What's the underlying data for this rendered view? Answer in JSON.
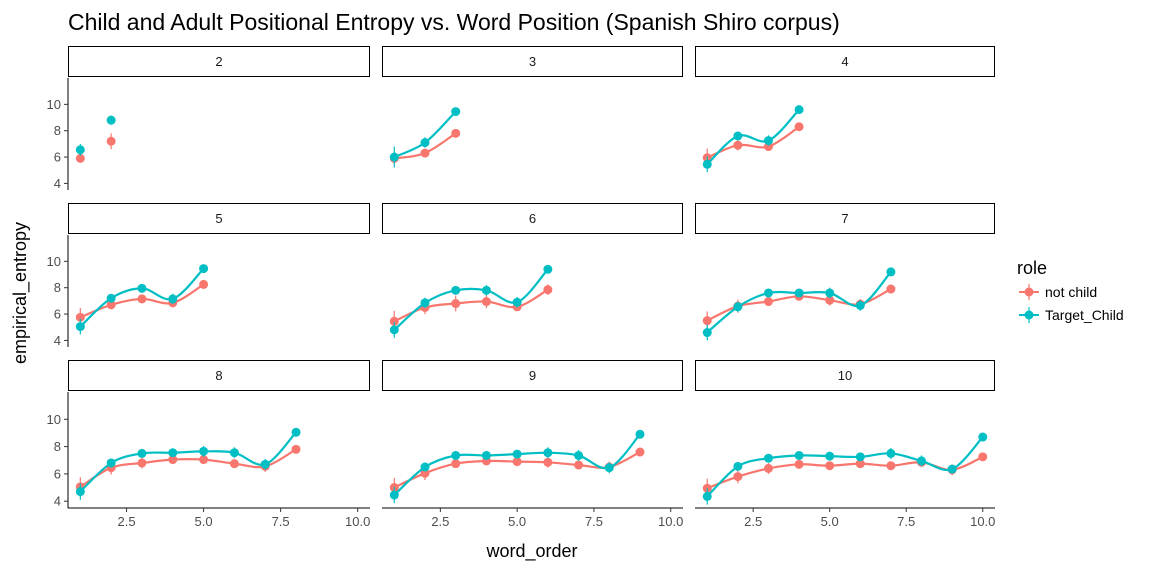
{
  "chart_data": {
    "type": "line",
    "title": "Child and Adult Positional Entropy vs. Word Position (Spanish Shiro corpus)",
    "xlabel": "word_order",
    "ylabel": "empirical_entropy",
    "xlim": [
      0.6,
      10.4
    ],
    "ylim": [
      3.5,
      12
    ],
    "x_ticks": [
      2.5,
      5.0,
      7.5,
      10.0
    ],
    "x_tick_labels": [
      "2.5",
      "5.0",
      "7.5",
      "10.0"
    ],
    "y_ticks": [
      4,
      6,
      8,
      10
    ],
    "y_tick_labels": [
      "4",
      "6",
      "8",
      "10"
    ],
    "grid": false,
    "legend": {
      "title": "role",
      "position": "right",
      "entries": [
        {
          "label": "not child",
          "color": "#F8766D"
        },
        {
          "label": "Target_Child",
          "color": "#00BFC4"
        }
      ]
    },
    "panels": [
      {
        "label": "2",
        "not_child": {
          "x": [
            1,
            2
          ],
          "y": [
            5.9,
            7.2
          ],
          "err": [
            0.3,
            0.6
          ]
        },
        "target_child": {
          "x": [
            1,
            2
          ],
          "y": [
            6.55,
            8.8
          ],
          "err": [
            0.45,
            0.35
          ]
        }
      },
      {
        "label": "3",
        "not_child": {
          "x": [
            1,
            2,
            3
          ],
          "y": [
            5.9,
            6.3,
            7.8
          ],
          "err": [
            0.5,
            0.3,
            0.3
          ]
        },
        "target_child": {
          "x": [
            1,
            2,
            3
          ],
          "y": [
            6.0,
            7.1,
            9.45
          ],
          "err": [
            0.8,
            0.4,
            0.2
          ]
        }
      },
      {
        "label": "4",
        "not_child": {
          "x": [
            1,
            2,
            3,
            4
          ],
          "y": [
            5.95,
            6.9,
            6.8,
            8.3
          ],
          "err": [
            0.7,
            0.4,
            0.3,
            0.3
          ]
        },
        "target_child": {
          "x": [
            1,
            2,
            3,
            4
          ],
          "y": [
            5.45,
            7.6,
            7.25,
            9.6
          ],
          "err": [
            0.6,
            0.3,
            0.4,
            0.2
          ]
        }
      },
      {
        "label": "5",
        "not_child": {
          "x": [
            1,
            2,
            3,
            4,
            5
          ],
          "y": [
            5.75,
            6.7,
            7.15,
            6.85,
            8.25
          ],
          "err": [
            0.7,
            0.3,
            0.3,
            0.3,
            0.3
          ]
        },
        "target_child": {
          "x": [
            1,
            2,
            3,
            4,
            5
          ],
          "y": [
            5.05,
            7.2,
            7.95,
            7.15,
            9.45
          ],
          "err": [
            0.6,
            0.3,
            0.3,
            0.4,
            0.2
          ]
        }
      },
      {
        "label": "6",
        "not_child": {
          "x": [
            1,
            2,
            3,
            4,
            5,
            6
          ],
          "y": [
            5.45,
            6.5,
            6.8,
            6.95,
            6.55,
            7.85
          ],
          "err": [
            0.8,
            0.5,
            0.6,
            0.5,
            0.3,
            0.4
          ]
        },
        "target_child": {
          "x": [
            1,
            2,
            3,
            4,
            5,
            6
          ],
          "y": [
            4.8,
            6.85,
            7.8,
            7.8,
            6.9,
            9.4
          ],
          "err": [
            0.6,
            0.4,
            0.3,
            0.4,
            0.4,
            0.2
          ]
        }
      },
      {
        "label": "7",
        "not_child": {
          "x": [
            1,
            2,
            3,
            4,
            5,
            6,
            7
          ],
          "y": [
            5.5,
            6.6,
            6.95,
            7.35,
            7.05,
            6.75,
            7.9
          ],
          "err": [
            0.7,
            0.5,
            0.3,
            0.3,
            0.4,
            0.4,
            0.3
          ]
        },
        "target_child": {
          "x": [
            1,
            2,
            3,
            4,
            5,
            6,
            7
          ],
          "y": [
            4.6,
            6.55,
            7.6,
            7.6,
            7.6,
            6.65,
            9.2
          ],
          "err": [
            0.6,
            0.4,
            0.3,
            0.3,
            0.4,
            0.4,
            0.2
          ]
        }
      },
      {
        "label": "8",
        "not_child": {
          "x": [
            1,
            2,
            3,
            4,
            5,
            6,
            7,
            8
          ],
          "y": [
            5.05,
            6.45,
            6.8,
            7.05,
            7.05,
            6.75,
            6.55,
            7.8
          ],
          "err": [
            0.7,
            0.5,
            0.4,
            0.3,
            0.3,
            0.3,
            0.4,
            0.3
          ]
        },
        "target_child": {
          "x": [
            1,
            2,
            3,
            4,
            5,
            6,
            7,
            8
          ],
          "y": [
            4.7,
            6.8,
            7.5,
            7.55,
            7.65,
            7.55,
            6.7,
            9.05
          ],
          "err": [
            0.6,
            0.3,
            0.3,
            0.3,
            0.4,
            0.4,
            0.4,
            0.2
          ]
        }
      },
      {
        "label": "9",
        "not_child": {
          "x": [
            1,
            2,
            3,
            4,
            5,
            6,
            7,
            8,
            9
          ],
          "y": [
            5.0,
            6.05,
            6.75,
            6.95,
            6.9,
            6.85,
            6.65,
            6.5,
            7.6
          ],
          "err": [
            0.7,
            0.5,
            0.3,
            0.3,
            0.3,
            0.4,
            0.3,
            0.4,
            0.3
          ]
        },
        "target_child": {
          "x": [
            1,
            2,
            3,
            4,
            5,
            6,
            7,
            8,
            9
          ],
          "y": [
            4.45,
            6.5,
            7.35,
            7.35,
            7.45,
            7.55,
            7.35,
            6.45,
            8.9
          ],
          "err": [
            0.6,
            0.3,
            0.3,
            0.3,
            0.3,
            0.4,
            0.4,
            0.4,
            0.2
          ]
        }
      },
      {
        "label": "10",
        "not_child": {
          "x": [
            1,
            2,
            3,
            4,
            5,
            6,
            7,
            8,
            9,
            10
          ],
          "y": [
            4.95,
            5.8,
            6.4,
            6.7,
            6.6,
            6.75,
            6.6,
            6.85,
            6.3,
            7.25
          ],
          "err": [
            0.7,
            0.5,
            0.4,
            0.3,
            0.3,
            0.3,
            0.3,
            0.3,
            0.4,
            0.3
          ]
        },
        "target_child": {
          "x": [
            1,
            2,
            3,
            4,
            5,
            6,
            7,
            8,
            9,
            10
          ],
          "y": [
            4.35,
            6.55,
            7.15,
            7.35,
            7.3,
            7.25,
            7.5,
            6.95,
            6.35,
            8.7
          ],
          "err": [
            0.6,
            0.3,
            0.3,
            0.3,
            0.3,
            0.3,
            0.4,
            0.4,
            0.3,
            0.2
          ]
        }
      }
    ]
  }
}
